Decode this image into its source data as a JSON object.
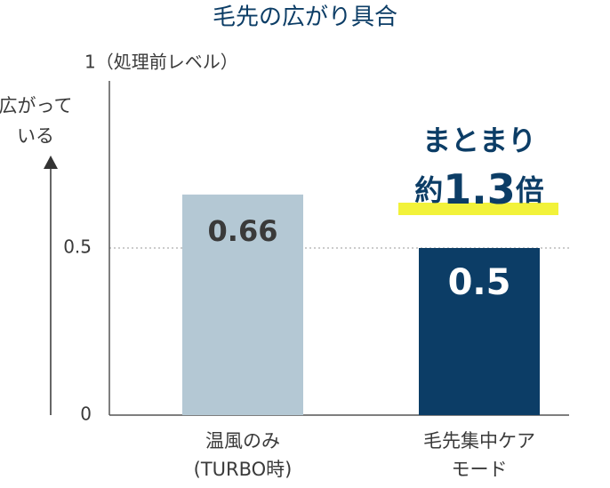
{
  "chart_data": {
    "type": "bar",
    "title": "毛先の広がり具合",
    "y_label": [
      "広がって",
      "いる"
    ],
    "categories": [
      [
        "温風のみ",
        "(TURBO時)"
      ],
      [
        "毛先集中ケア",
        "モード"
      ]
    ],
    "values": [
      0.66,
      0.5
    ],
    "colors": [
      "#b4c8d4",
      "#0c3d66"
    ],
    "value_label_colors": [
      "#3a3a3a",
      "#ffffff"
    ],
    "ylim": [
      0,
      1
    ],
    "yticks": [
      0,
      0.5,
      {
        "value": 1,
        "label": "1（処理前レベル）"
      }
    ],
    "grid": true,
    "annotation": {
      "line1": "まとまり",
      "line2": [
        "約",
        "1.3",
        "倍"
      ],
      "color": "#0c3d66",
      "highlight": "#f2f23a"
    }
  }
}
